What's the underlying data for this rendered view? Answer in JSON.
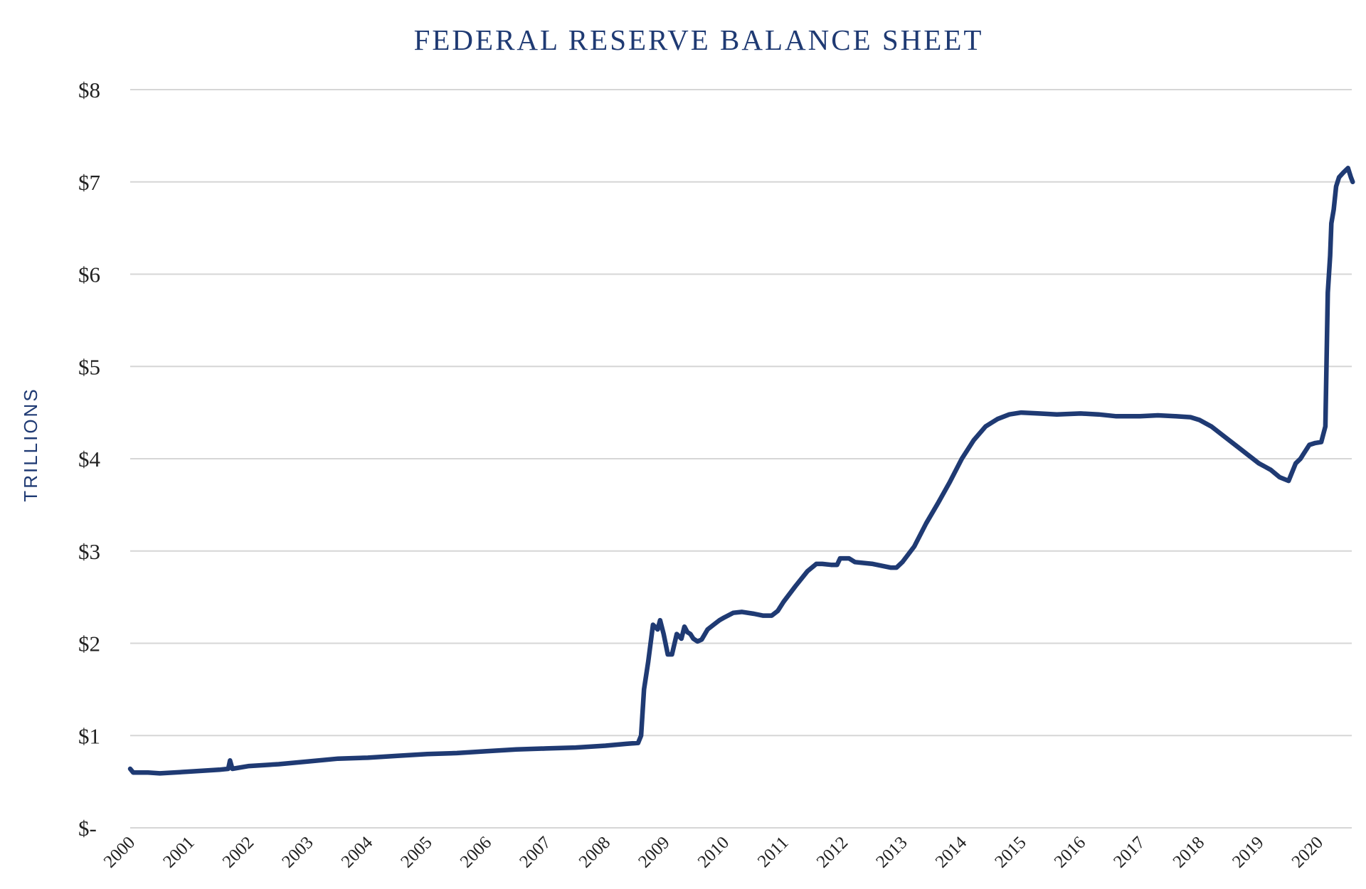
{
  "chart_data": {
    "type": "line",
    "title": "FEDERAL RESERVE BALANCE SHEET",
    "xlabel": "",
    "ylabel": "TRILLIONS",
    "ylim": [
      0,
      8
    ],
    "xlim": [
      2000,
      2020.6
    ],
    "y_tick_values": [
      0,
      1,
      2,
      3,
      4,
      5,
      6,
      7,
      8
    ],
    "y_tick_labels": [
      "$-",
      "$1",
      "$2",
      "$3",
      "$4",
      "$5",
      "$6",
      "$7",
      "$8"
    ],
    "x_tick_values": [
      2000,
      2001,
      2002,
      2003,
      2004,
      2005,
      2006,
      2007,
      2008,
      2009,
      2010,
      2011,
      2012,
      2013,
      2014,
      2015,
      2016,
      2017,
      2018,
      2019,
      2020
    ],
    "x_tick_labels": [
      "2000",
      "2001",
      "2002",
      "2003",
      "2004",
      "2005",
      "2006",
      "2007",
      "2008",
      "2009",
      "2010",
      "2011",
      "2012",
      "2013",
      "2014",
      "2015",
      "2016",
      "2017",
      "2018",
      "2019",
      "2020"
    ],
    "grid": true,
    "legend": "none",
    "color": "#1f3a73",
    "series": [
      {
        "x": [
          2000.0,
          2000.05,
          2000.3,
          2000.5,
          2001.0,
          2001.5,
          2001.65,
          2001.68,
          2001.72,
          2002.0,
          2002.5,
          2003.0,
          2003.5,
          2004.0,
          2004.5,
          2005.0,
          2005.5,
          2006.0,
          2006.5,
          2007.0,
          2007.5,
          2008.0,
          2008.35,
          2008.55,
          2008.6,
          2008.65,
          2008.72,
          2008.8,
          2008.88,
          2008.92,
          2008.98,
          2009.05,
          2009.12,
          2009.2,
          2009.28,
          2009.33,
          2009.38,
          2009.43,
          2009.48,
          2009.55,
          2009.62,
          2009.72,
          2009.82,
          2009.92,
          2010.0,
          2010.15,
          2010.3,
          2010.5,
          2010.65,
          2010.8,
          2010.9,
          2011.0,
          2011.2,
          2011.4,
          2011.55,
          2011.65,
          2011.8,
          2011.9,
          2011.95,
          2012.1,
          2012.2,
          2012.5,
          2012.8,
          2012.9,
          2013.0,
          2013.2,
          2013.4,
          2013.6,
          2013.8,
          2014.0,
          2014.2,
          2014.4,
          2014.6,
          2014.8,
          2015.0,
          2015.3,
          2015.6,
          2016.0,
          2016.3,
          2016.6,
          2017.0,
          2017.3,
          2017.6,
          2017.85,
          2018.0,
          2018.2,
          2018.4,
          2018.6,
          2018.8,
          2019.0,
          2019.2,
          2019.35,
          2019.5,
          2019.62,
          2019.7,
          2019.75,
          2019.85,
          2019.95,
          2020.05,
          2020.12,
          2020.16,
          2020.2,
          2020.22,
          2020.26,
          2020.3,
          2020.35,
          2020.42,
          2020.5,
          2020.55,
          2020.58
        ],
        "y": [
          0.64,
          0.6,
          0.6,
          0.59,
          0.61,
          0.63,
          0.64,
          0.73,
          0.64,
          0.67,
          0.69,
          0.72,
          0.75,
          0.76,
          0.78,
          0.8,
          0.81,
          0.83,
          0.85,
          0.86,
          0.87,
          0.89,
          0.91,
          0.92,
          1.0,
          1.5,
          1.8,
          2.2,
          2.15,
          2.25,
          2.1,
          1.88,
          1.88,
          2.1,
          2.05,
          2.18,
          2.12,
          2.1,
          2.05,
          2.02,
          2.04,
          2.15,
          2.2,
          2.25,
          2.28,
          2.33,
          2.34,
          2.32,
          2.3,
          2.3,
          2.35,
          2.45,
          2.62,
          2.78,
          2.86,
          2.86,
          2.85,
          2.85,
          2.92,
          2.92,
          2.88,
          2.86,
          2.82,
          2.82,
          2.88,
          3.05,
          3.3,
          3.52,
          3.75,
          4.0,
          4.2,
          4.35,
          4.43,
          4.48,
          4.5,
          4.49,
          4.48,
          4.49,
          4.48,
          4.46,
          4.46,
          4.47,
          4.46,
          4.45,
          4.42,
          4.35,
          4.25,
          4.15,
          4.05,
          3.95,
          3.88,
          3.8,
          3.76,
          3.95,
          4.0,
          4.05,
          4.15,
          4.17,
          4.18,
          4.35,
          5.8,
          6.2,
          6.55,
          6.7,
          6.95,
          7.05,
          7.1,
          7.15,
          7.05,
          7.0
        ]
      }
    ]
  }
}
